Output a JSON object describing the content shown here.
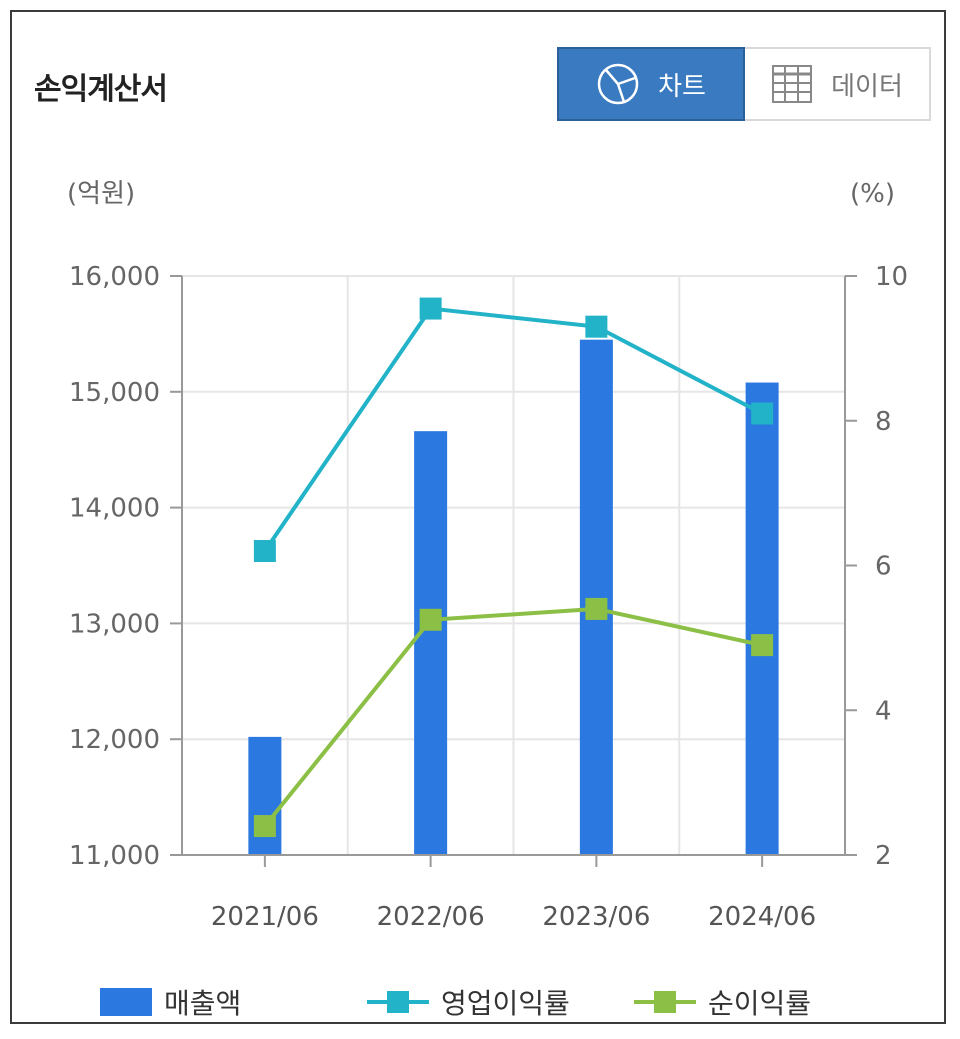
{
  "header": {
    "title": "손익계산서",
    "toggle": [
      {
        "label": "차트",
        "icon": "pie-chart-icon",
        "active": true
      },
      {
        "label": "데이터",
        "icon": "table-grid-icon",
        "active": false
      }
    ]
  },
  "chart_data": {
    "type": "bar",
    "categories": [
      "2021/06",
      "2022/06",
      "2023/06",
      "2024/06"
    ],
    "left_axis_unit": "(억원)",
    "right_axis_unit": "(%)",
    "left_ticks": [
      "16,000",
      "15,000",
      "14,000",
      "13,000",
      "12,000",
      "11,000"
    ],
    "right_ticks": [
      "10",
      "8",
      "6",
      "4",
      "2"
    ],
    "ylim_left": [
      11000,
      16000
    ],
    "ylim_right": [
      2,
      10
    ],
    "series": [
      {
        "name": "매출액",
        "type": "bar",
        "axis": "left",
        "color": "#2a78e0",
        "values": [
          12020,
          14660,
          15450,
          15080
        ]
      },
      {
        "name": "영업이익률",
        "type": "line",
        "axis": "right",
        "color": "#22b3c9",
        "values": [
          6.2,
          9.55,
          9.3,
          8.1
        ]
      },
      {
        "name": "순이익률",
        "type": "line",
        "axis": "right",
        "color": "#8cbf46",
        "values": [
          2.4,
          5.25,
          5.4,
          4.9
        ]
      }
    ],
    "grid": true,
    "legend_position": "bottom"
  }
}
